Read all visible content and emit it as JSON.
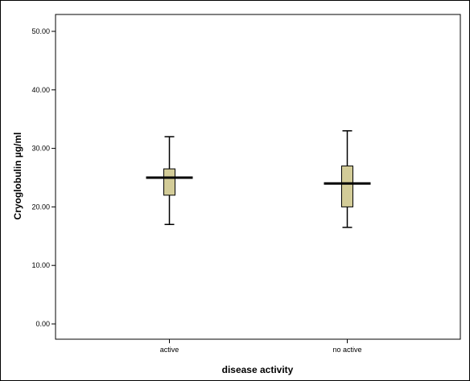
{
  "chart_data": {
    "type": "box",
    "xlabel": "disease activity",
    "ylabel": "Cryoglobulin µg/ml",
    "ylim": [
      -3,
      52.5
    ],
    "yticks": [
      {
        "value": 0,
        "label": "0.00"
      },
      {
        "value": 10,
        "label": "10.00"
      },
      {
        "value": 20,
        "label": "20.00"
      },
      {
        "value": 30,
        "label": "30.00"
      },
      {
        "value": 40,
        "label": "40.00"
      },
      {
        "value": 50,
        "label": "50.00"
      }
    ],
    "categories": [
      "active",
      "no active"
    ],
    "boxes": [
      {
        "category": "active",
        "min": 17,
        "q1": 22,
        "median": 25,
        "q3": 26.5,
        "max": 32
      },
      {
        "category": "no active",
        "min": 16.5,
        "q1": 20,
        "median": 24,
        "q3": 27,
        "max": 33
      }
    ],
    "grid": false,
    "colors": {
      "box_fill": "#d3cc98",
      "stroke": "#000000",
      "background": "#ffffff"
    }
  }
}
